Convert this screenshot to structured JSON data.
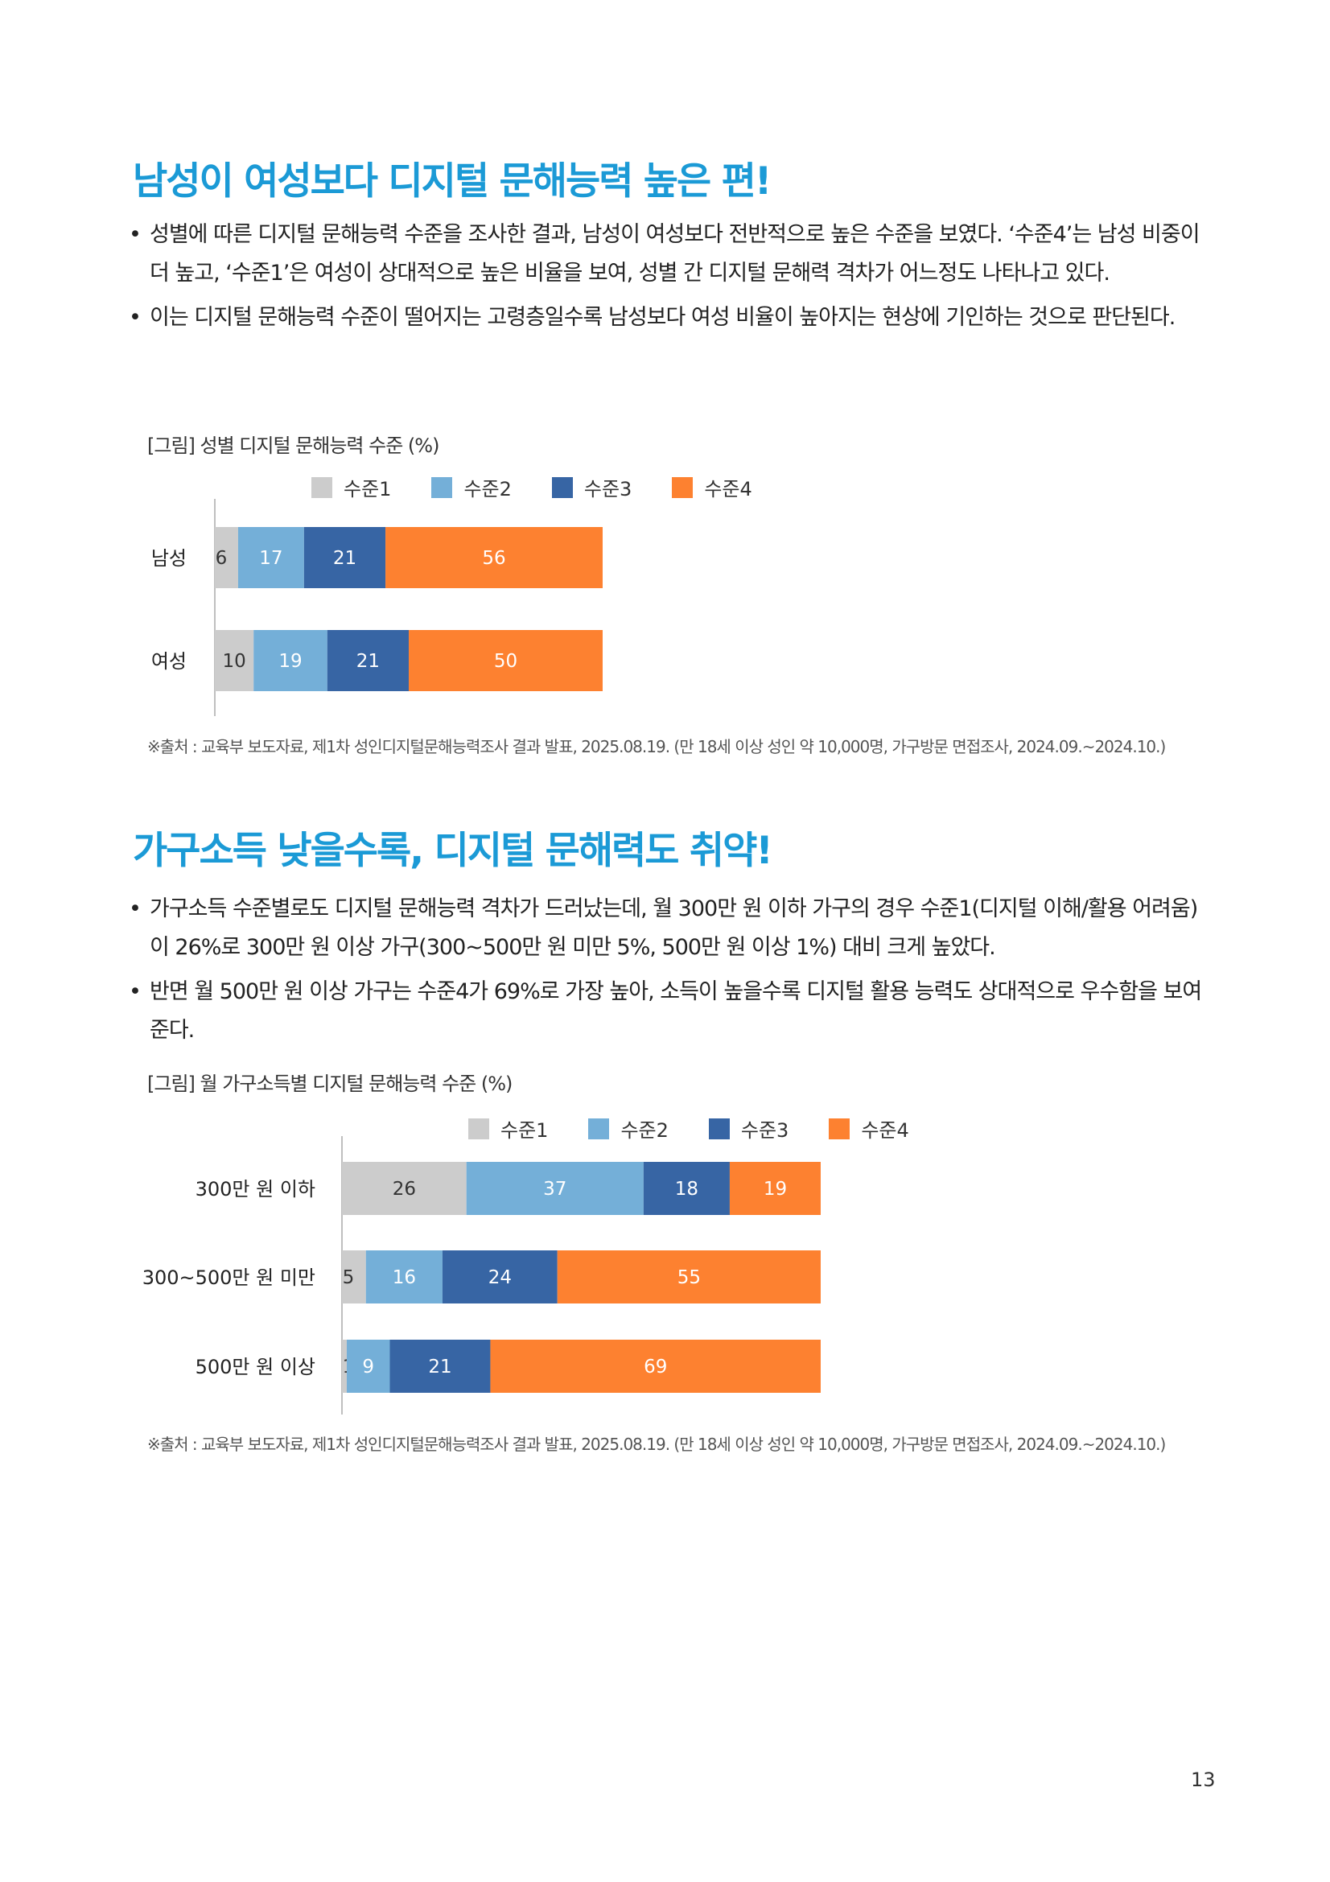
{
  "sections": [
    {
      "title": "남성이 여성보다 디지털 문해능력 높은 편!",
      "bullets": [
        "성별에 따른 디지털 문해능력 수준을 조사한 결과, 남성이 여성보다 전반적으로 높은 수준을 보였다. ‘수준4’는 남성 비중이 더 높고, ‘수준1’은 여성이 상대적으로 높은 비율을 보여, 성별 간 디지털 문해력 격차가 어느정도 나타나고 있다.",
        "이는 디지털 문해능력 수준이 떨어지는 고령층일수록 남성보다 여성 비율이 높아지는 현상에 기인하는 것으로 판단된다."
      ],
      "figure_caption": "[그림] 성별 디지털 문해능력 수준 (%)",
      "source": "※출처 : 교육부 보도자료, 제1차 성인디지털문해능력조사 결과 발표, 2025.08.19. (만 18세 이상 성인 약 10,000명, 가구방문 면접조사, 2024.09.~2024.10.)"
    },
    {
      "title": "가구소득 낮을수록, 디지털 문해력도 취약!",
      "bullets": [
        "가구소득 수준별로도 디지털 문해능력 격차가 드러났는데, 월 300만 원 이하 가구의 경우 수준1(디지털 이해/활용 어려움)이 26%로 300만 원 이상 가구(300~500만 원 미만 5%, 500만 원 이상 1%) 대비 크게 높았다.",
        "반면 월 500만 원 이상 가구는 수준4가 69%로 가장 높아, 소득이 높을수록 디지털 활용 능력도 상대적으로 우수함을 보여준다."
      ],
      "figure_caption": "[그림] 월 가구소득별 디지털 문해능력 수준 (%)",
      "source": "※출처 : 교육부 보도자료, 제1차 성인디지털문해능력조사 결과 발표, 2025.08.19. (만 18세 이상 성인 약 10,000명, 가구방문 면접조사, 2024.09.~2024.10.)"
    }
  ],
  "page_number": "13",
  "colors": {
    "level1": "#cccccc",
    "level2": "#74afd8",
    "level3": "#3765a4",
    "level4": "#fd8130",
    "title": "#1b9ad6"
  },
  "chart_data": [
    {
      "type": "bar",
      "orientation": "horizontal",
      "stacked": true,
      "categories": [
        "남성",
        "여성"
      ],
      "series": [
        {
          "name": "수준1",
          "values": [
            6,
            10
          ]
        },
        {
          "name": "수준2",
          "values": [
            17,
            19
          ]
        },
        {
          "name": "수준3",
          "values": [
            21,
            21
          ]
        },
        {
          "name": "수준4",
          "values": [
            56,
            50
          ]
        }
      ],
      "xlim": [
        0,
        100
      ],
      "legend": "top",
      "grid": false
    },
    {
      "type": "bar",
      "orientation": "horizontal",
      "stacked": true,
      "categories": [
        "300만 원 이하",
        "300~500만 원 미만",
        "500만 원 이상"
      ],
      "series": [
        {
          "name": "수준1",
          "values": [
            26,
            5,
            1
          ]
        },
        {
          "name": "수준2",
          "values": [
            37,
            16,
            9
          ]
        },
        {
          "name": "수준3",
          "values": [
            18,
            24,
            21
          ]
        },
        {
          "name": "수준4",
          "values": [
            19,
            55,
            69
          ]
        }
      ],
      "xlim": [
        0,
        100
      ],
      "legend": "top",
      "grid": false
    }
  ]
}
